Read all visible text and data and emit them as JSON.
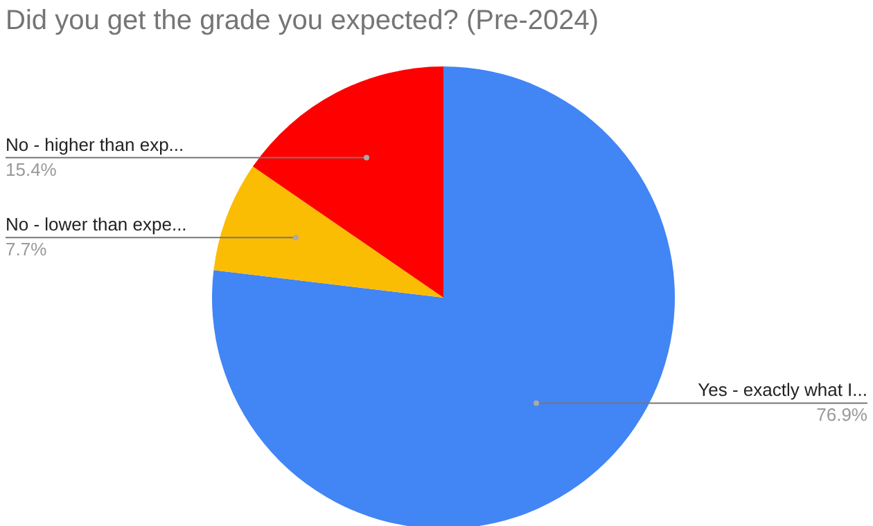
{
  "chart_data": {
    "type": "pie",
    "title": "Did you get the grade you expected? (Pre-2024)",
    "categories": [
      "Yes - exactly what I...",
      "No - lower than expe...",
      "No - higher than exp..."
    ],
    "values": [
      76.9,
      7.7,
      15.4
    ],
    "colors": [
      "#4285f4",
      "#fbbc04",
      "#ff0000"
    ],
    "value_labels": [
      "76.9%",
      "7.7%",
      "15.4%"
    ]
  }
}
